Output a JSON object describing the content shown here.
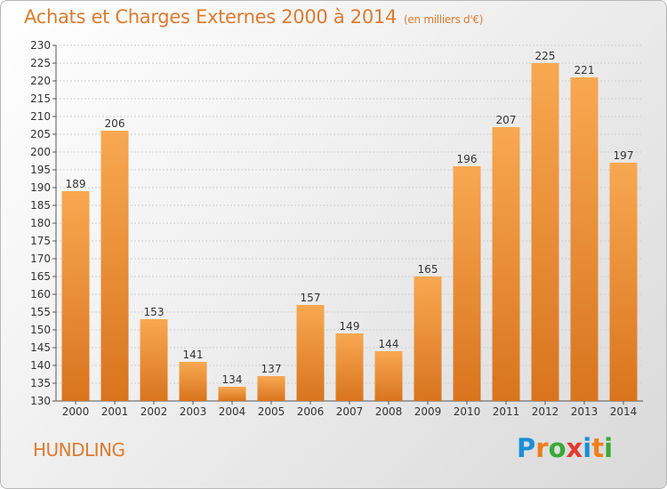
{
  "title": "Achats et Charges Externes 2000 à 2014",
  "subtitle": "(en milliers d'€)",
  "location": "HUNDLING",
  "logo": {
    "letters": [
      "P",
      "r",
      "o",
      "x",
      "i",
      "t",
      "i"
    ],
    "colors": [
      "#1a8fd6",
      "#f07d1a",
      "#3aaa35",
      "#e53a2f",
      "#1a8fd6",
      "#f07d1a",
      "#3aaa35"
    ]
  },
  "colors": {
    "title": "#e07a2c",
    "bar_top": "#f8a851",
    "bar_bottom": "#d9741e"
  },
  "chart_data": {
    "type": "bar",
    "title": "Achats et Charges Externes 2000 à 2014",
    "subtitle": "(en milliers d'€)",
    "categories": [
      "2000",
      "2001",
      "2002",
      "2003",
      "2004",
      "2005",
      "2006",
      "2007",
      "2008",
      "2009",
      "2010",
      "2011",
      "2012",
      "2013",
      "2014"
    ],
    "values": [
      189,
      206,
      153,
      141,
      134,
      137,
      157,
      149,
      144,
      165,
      196,
      207,
      225,
      221,
      197
    ],
    "ylim": [
      130,
      230
    ],
    "ytick_step": 5,
    "grid": true,
    "legend": "none"
  }
}
